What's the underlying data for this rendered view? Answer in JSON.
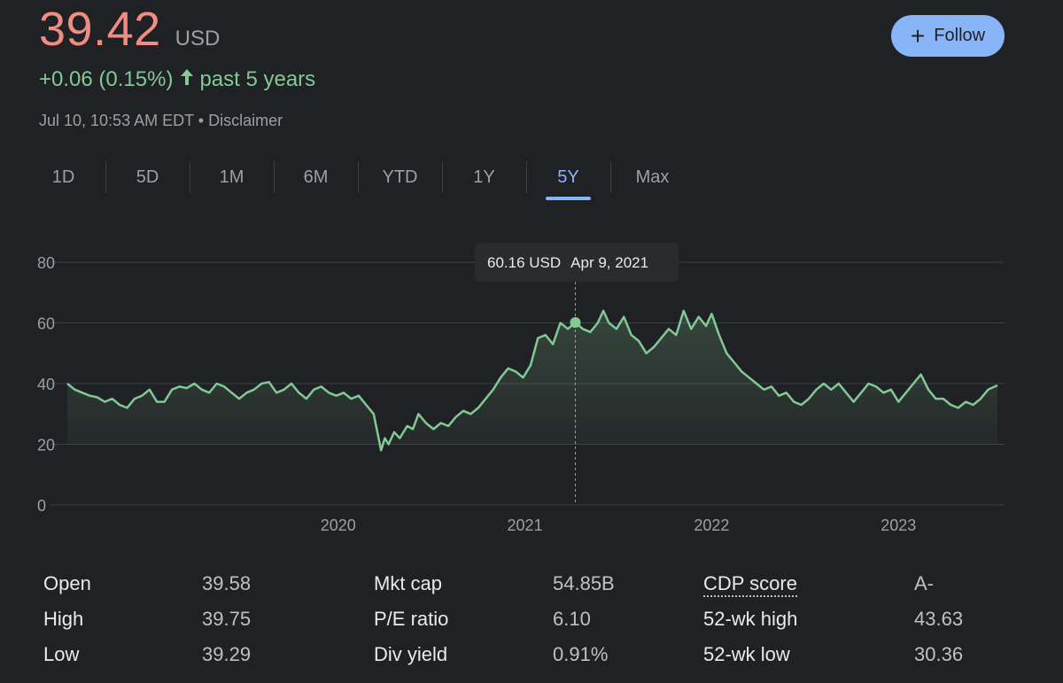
{
  "quote": {
    "price": "39.42",
    "currency": "USD",
    "change": "+0.06 (0.15%)",
    "period": "past 5 years",
    "timestamp": "Jul 10, 10:53 AM EDT",
    "separator": "•",
    "disclaimer": "Disclaimer"
  },
  "follow_button": {
    "label": "Follow",
    "icon": "plus-icon"
  },
  "tabs": [
    "1D",
    "5D",
    "1M",
    "6M",
    "YTD",
    "1Y",
    "5Y",
    "Max"
  ],
  "active_tab": "5Y",
  "tooltip": {
    "value": "60.16 USD",
    "date": "Apr 9, 2021"
  },
  "stats": [
    {
      "label": "Open",
      "value": "39.58"
    },
    {
      "label": "High",
      "value": "39.75"
    },
    {
      "label": "Low",
      "value": "39.29"
    },
    {
      "label": "Mkt cap",
      "value": "54.85B"
    },
    {
      "label": "P/E ratio",
      "value": "6.10"
    },
    {
      "label": "Div yield",
      "value": "0.91%"
    },
    {
      "label": "CDP score",
      "value": "A-"
    },
    {
      "label": "52-wk high",
      "value": "43.63"
    },
    {
      "label": "52-wk low",
      "value": "30.36"
    }
  ],
  "colors": {
    "price": "#f28b82",
    "positive": "#81c995",
    "accent": "#8ab4f8",
    "background": "#202124"
  },
  "chart_data": {
    "type": "area",
    "y_ticks": [
      0,
      20,
      40,
      60,
      80
    ],
    "ylim": [
      0,
      80
    ],
    "x_ticks": [
      "2020",
      "2021",
      "2022",
      "2023"
    ],
    "xlim": [
      2018.55,
      2023.53
    ],
    "grid": true,
    "highlight": {
      "x": 2021.27,
      "y": 60.16
    },
    "series": [
      {
        "points": [
          [
            2018.55,
            40
          ],
          [
            2018.59,
            38
          ],
          [
            2018.63,
            37
          ],
          [
            2018.67,
            36
          ],
          [
            2018.71,
            35.5
          ],
          [
            2018.75,
            34
          ],
          [
            2018.79,
            35
          ],
          [
            2018.83,
            33
          ],
          [
            2018.87,
            32
          ],
          [
            2018.91,
            35
          ],
          [
            2018.95,
            36
          ],
          [
            2018.99,
            38
          ],
          [
            2019.03,
            34
          ],
          [
            2019.07,
            34
          ],
          [
            2019.11,
            38
          ],
          [
            2019.15,
            39
          ],
          [
            2019.19,
            38.5
          ],
          [
            2019.23,
            40
          ],
          [
            2019.27,
            38
          ],
          [
            2019.31,
            37
          ],
          [
            2019.35,
            40
          ],
          [
            2019.39,
            39
          ],
          [
            2019.43,
            37
          ],
          [
            2019.47,
            35
          ],
          [
            2019.51,
            37
          ],
          [
            2019.55,
            38
          ],
          [
            2019.59,
            40
          ],
          [
            2019.63,
            40.5
          ],
          [
            2019.67,
            37
          ],
          [
            2019.71,
            38
          ],
          [
            2019.75,
            40
          ],
          [
            2019.79,
            37
          ],
          [
            2019.83,
            35
          ],
          [
            2019.87,
            38
          ],
          [
            2019.91,
            39
          ],
          [
            2019.95,
            37
          ],
          [
            2019.99,
            36
          ],
          [
            2020.03,
            37
          ],
          [
            2020.07,
            35
          ],
          [
            2020.11,
            36
          ],
          [
            2020.15,
            33
          ],
          [
            2020.19,
            30
          ],
          [
            2020.21,
            24
          ],
          [
            2020.23,
            18
          ],
          [
            2020.25,
            22
          ],
          [
            2020.27,
            20
          ],
          [
            2020.3,
            24
          ],
          [
            2020.33,
            22
          ],
          [
            2020.37,
            26
          ],
          [
            2020.4,
            25
          ],
          [
            2020.43,
            30
          ],
          [
            2020.47,
            27
          ],
          [
            2020.51,
            25
          ],
          [
            2020.55,
            27
          ],
          [
            2020.59,
            26
          ],
          [
            2020.63,
            29
          ],
          [
            2020.67,
            31
          ],
          [
            2020.71,
            30
          ],
          [
            2020.75,
            32
          ],
          [
            2020.79,
            35
          ],
          [
            2020.83,
            38
          ],
          [
            2020.87,
            42
          ],
          [
            2020.91,
            45
          ],
          [
            2020.95,
            44
          ],
          [
            2020.99,
            42
          ],
          [
            2021.03,
            46
          ],
          [
            2021.07,
            55
          ],
          [
            2021.11,
            56
          ],
          [
            2021.15,
            53
          ],
          [
            2021.19,
            60
          ],
          [
            2021.23,
            58
          ],
          [
            2021.27,
            60.16
          ],
          [
            2021.31,
            58
          ],
          [
            2021.35,
            57
          ],
          [
            2021.39,
            60
          ],
          [
            2021.42,
            64
          ],
          [
            2021.45,
            60
          ],
          [
            2021.49,
            58
          ],
          [
            2021.53,
            62
          ],
          [
            2021.57,
            56
          ],
          [
            2021.61,
            54
          ],
          [
            2021.65,
            50
          ],
          [
            2021.69,
            52
          ],
          [
            2021.73,
            55
          ],
          [
            2021.77,
            58
          ],
          [
            2021.81,
            56
          ],
          [
            2021.85,
            64
          ],
          [
            2021.89,
            58
          ],
          [
            2021.93,
            62
          ],
          [
            2021.97,
            59
          ],
          [
            2022.0,
            63
          ],
          [
            2022.04,
            56
          ],
          [
            2022.08,
            50
          ],
          [
            2022.12,
            47
          ],
          [
            2022.16,
            44
          ],
          [
            2022.2,
            42
          ],
          [
            2022.24,
            40
          ],
          [
            2022.28,
            38
          ],
          [
            2022.32,
            39
          ],
          [
            2022.36,
            36
          ],
          [
            2022.4,
            37
          ],
          [
            2022.44,
            34
          ],
          [
            2022.48,
            33
          ],
          [
            2022.52,
            35
          ],
          [
            2022.56,
            38
          ],
          [
            2022.6,
            40
          ],
          [
            2022.64,
            38
          ],
          [
            2022.68,
            40
          ],
          [
            2022.72,
            37
          ],
          [
            2022.76,
            34
          ],
          [
            2022.8,
            37
          ],
          [
            2022.84,
            40
          ],
          [
            2022.88,
            39
          ],
          [
            2022.92,
            37
          ],
          [
            2022.96,
            38
          ],
          [
            2023.0,
            34
          ],
          [
            2023.04,
            37
          ],
          [
            2023.08,
            40
          ],
          [
            2023.12,
            43
          ],
          [
            2023.16,
            38
          ],
          [
            2023.2,
            35
          ],
          [
            2023.24,
            35
          ],
          [
            2023.28,
            33
          ],
          [
            2023.32,
            32
          ],
          [
            2023.36,
            34
          ],
          [
            2023.4,
            33
          ],
          [
            2023.44,
            35
          ],
          [
            2023.48,
            38
          ],
          [
            2023.53,
            39.42
          ]
        ]
      }
    ]
  }
}
